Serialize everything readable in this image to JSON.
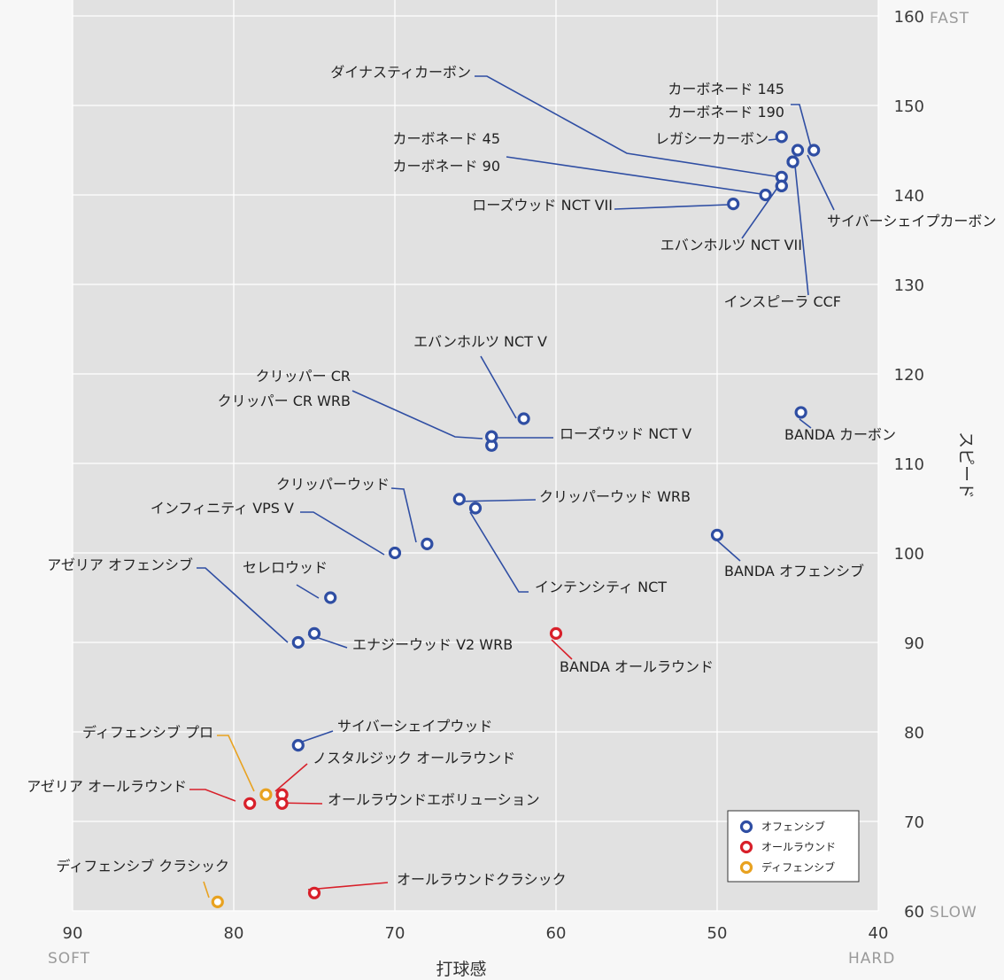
{
  "chart_data": {
    "type": "scatter",
    "xlabel": "打球感",
    "ylabel": "スピード",
    "xlim": [
      90,
      40
    ],
    "ylim": [
      60,
      160
    ],
    "x_ticks": [
      "90",
      "80",
      "70",
      "60",
      "50",
      "40"
    ],
    "y_ticks": [
      "160",
      "150",
      "140",
      "130",
      "120",
      "110",
      "100",
      "90",
      "80",
      "70",
      "60"
    ],
    "x_end_labels": {
      "left": "SOFT",
      "right": "HARD"
    },
    "y_end_labels": {
      "top": "FAST",
      "bottom": "SLOW"
    },
    "grid": true,
    "legend_position": "bottom-right",
    "colors": {
      "offense": "#2f4ea3",
      "allround": "#d8202a",
      "defense": "#e8a220"
    },
    "series": [
      {
        "name": "オフェンシブ",
        "key": "offense",
        "points": [
          {
            "label": "ダイナスティカーボン",
            "x": 46,
            "y": 142
          },
          {
            "label": "カーボネード 145",
            "x": 44,
            "y": 145
          },
          {
            "label": "カーボネード 190",
            "x": 45,
            "y": 145
          },
          {
            "label": "レガシーカーボン",
            "x": 46,
            "y": 146.5
          },
          {
            "label": "カーボネード 45",
            "x": 46,
            "y": 141
          },
          {
            "label": "カーボネード 90",
            "x": 47,
            "y": 140
          },
          {
            "label": "サイバーシェイプカーボン",
            "x": 45.3,
            "y": 143.7
          },
          {
            "label": "ローズウッド NCT VII",
            "x": 49,
            "y": 139
          },
          {
            "label": "エバンホルツ NCT VII",
            "x": 46,
            "y": 141
          },
          {
            "label": "インスピーラ CCF",
            "x": 45.3,
            "y": 143.7
          },
          {
            "label": "エバンホルツ NCT V",
            "x": 62,
            "y": 115
          },
          {
            "label": "クリッパー CR",
            "x": 64,
            "y": 113
          },
          {
            "label": "クリッパー CR WRB",
            "x": 64,
            "y": 112
          },
          {
            "label": "ローズウッド NCT V",
            "x": 64,
            "y": 113
          },
          {
            "label": "BANDA カーボン",
            "x": 44.8,
            "y": 115.7
          },
          {
            "label": "クリッパーウッド",
            "x": 68,
            "y": 101
          },
          {
            "label": "インフィニティ VPS V",
            "x": 70,
            "y": 100
          },
          {
            "label": "クリッパーウッド WRB",
            "x": 66,
            "y": 106
          },
          {
            "label": "インテンシティ NCT",
            "x": 65,
            "y": 105
          },
          {
            "label": "BANDA オフェンシブ",
            "x": 50,
            "y": 102
          },
          {
            "label": "アゼリア オフェンシブ",
            "x": 76,
            "y": 90
          },
          {
            "label": "セレロウッド",
            "x": 74,
            "y": 95
          },
          {
            "label": "エナジーウッド V2 WRB",
            "x": 75,
            "y": 91
          },
          {
            "label": "サイバーシェイプウッド",
            "x": 76,
            "y": 78.5
          }
        ]
      },
      {
        "name": "オールラウンド",
        "key": "allround",
        "points": [
          {
            "label": "BANDA オールラウンド",
            "x": 60,
            "y": 91
          },
          {
            "label": "ノスタルジック オールラウンド",
            "x": 77,
            "y": 73
          },
          {
            "label": "アゼリア オールラウンド",
            "x": 79,
            "y": 72
          },
          {
            "label": "オールラウンドエボリューション",
            "x": 77,
            "y": 72
          },
          {
            "label": "オールラウンドクラシック",
            "x": 75,
            "y": 62
          }
        ]
      },
      {
        "name": "ディフェンシブ",
        "key": "defense",
        "points": [
          {
            "label": "ディフェンシブ プロ",
            "x": 78,
            "y": 73
          },
          {
            "label": "ディフェンシブ クラシック",
            "x": 81,
            "y": 61
          }
        ]
      }
    ]
  }
}
